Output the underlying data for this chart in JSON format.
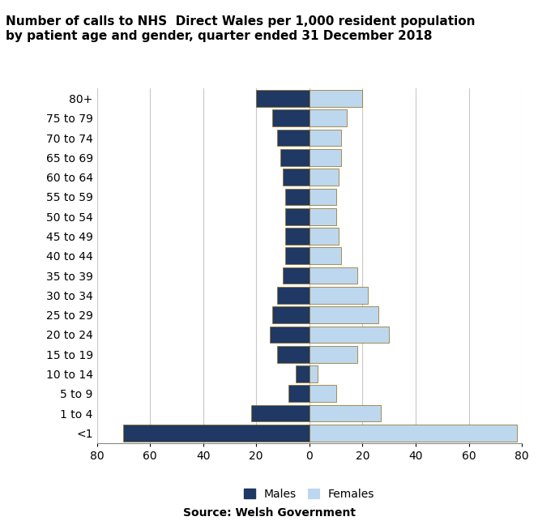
{
  "age_groups": [
    "<1",
    "1 to 4",
    "5 to 9",
    "10 to 14",
    "15 to 19",
    "20 to 24",
    "25 to 29",
    "30 to 34",
    "35 to 39",
    "40 to 44",
    "45 to 49",
    "50 to 54",
    "55 to 59",
    "60 to 64",
    "65 to 69",
    "70 to 74",
    "75 to 79",
    "80+"
  ],
  "males": [
    70,
    22,
    8,
    5,
    12,
    15,
    14,
    12,
    10,
    9,
    9,
    9,
    9,
    10,
    11,
    12,
    14,
    20
  ],
  "females": [
    78,
    27,
    10,
    3,
    18,
    30,
    26,
    22,
    18,
    12,
    11,
    10,
    10,
    11,
    12,
    12,
    14,
    20
  ],
  "male_color": "#1F3864",
  "female_color": "#BDD7EE",
  "male_edge_color": "#8B6914",
  "female_edge_color": "#8B6914",
  "title_line1": "Number of calls to NHS  Direct Wales per 1,000 resident population",
  "title_line2": "by patient age and gender, quarter ended 31 December 2018",
  "legend_male": "Males",
  "legend_female": "Females",
  "source": "Source: Welsh Government",
  "xlim": [
    -80,
    80
  ],
  "xticks": [
    -80,
    -60,
    -40,
    -20,
    0,
    20,
    40,
    60,
    80
  ],
  "xtick_labels": [
    "80",
    "60",
    "40",
    "20",
    "0",
    "20",
    "40",
    "60",
    "80"
  ],
  "background_color": "#FFFFFF",
  "grid_color": "#C8C8C8",
  "title_fontsize": 11,
  "tick_fontsize": 10,
  "legend_fontsize": 10,
  "source_fontsize": 10
}
